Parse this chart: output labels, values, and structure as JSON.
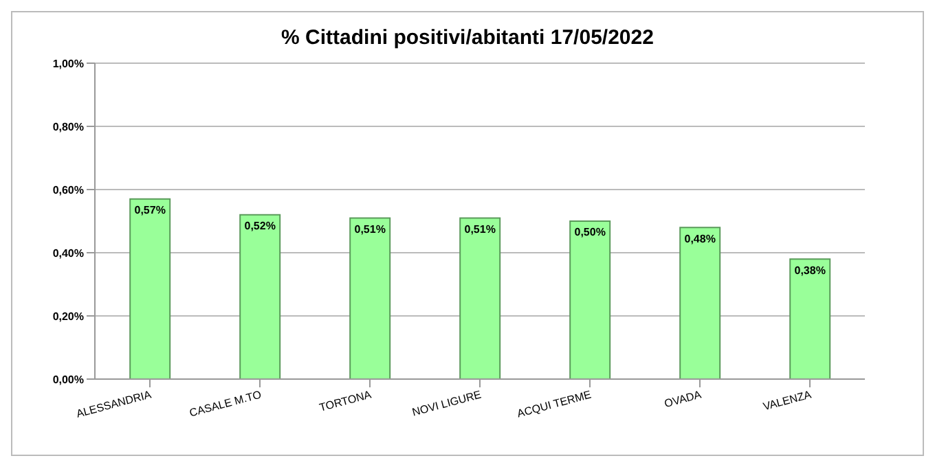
{
  "chart_data": {
    "type": "bar",
    "title": "% Cittadini positivi/abitanti 17/05/2022",
    "categories": [
      "ALESSANDRIA",
      "CASALE M.TO",
      "TORTONA",
      "NOVI LIGURE",
      "ACQUI TERME",
      "OVADA",
      "VALENZA"
    ],
    "values": [
      0.57,
      0.52,
      0.51,
      0.51,
      0.5,
      0.48,
      0.38
    ],
    "value_labels": [
      "0,57%",
      "0,52%",
      "0,51%",
      "0,51%",
      "0,50%",
      "0,48%",
      "0,38%"
    ],
    "color": "#99ff99",
    "ylim": [
      0,
      1
    ],
    "yticks": [
      {
        "value": 0,
        "label": "0,00%"
      },
      {
        "value": 0.2,
        "label": "0,20%"
      },
      {
        "value": 0.4,
        "label": "0,40%"
      },
      {
        "value": 0.6,
        "label": "0,60%"
      },
      {
        "value": 0.8,
        "label": "0,80%"
      },
      {
        "value": 1,
        "label": "1,00%"
      }
    ],
    "grid": "y",
    "legend": false
  }
}
